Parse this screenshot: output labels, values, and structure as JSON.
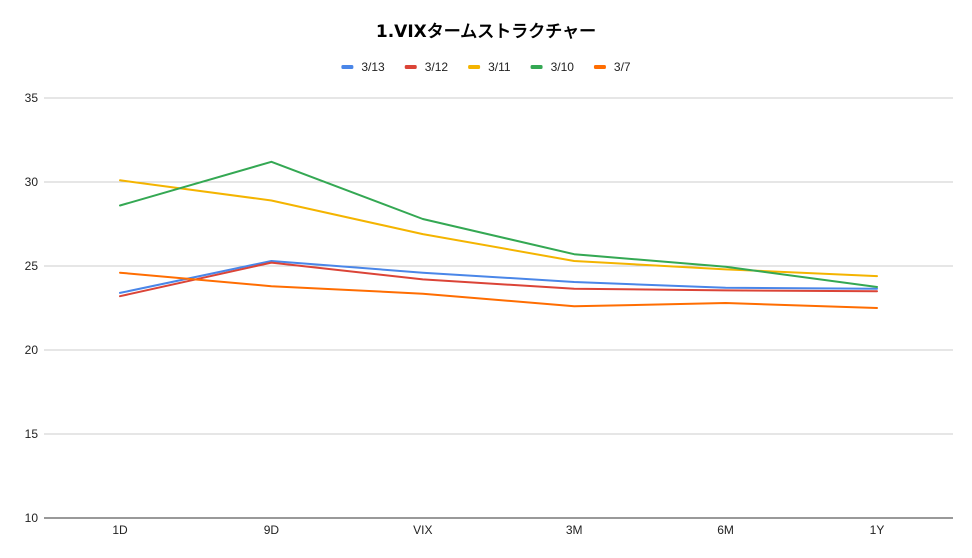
{
  "chart_data": {
    "type": "line",
    "title": "1.VIXタームストラクチャー",
    "xlabel": "",
    "ylabel": "",
    "categories": [
      "1D",
      "9D",
      "VIX",
      "3M",
      "6M",
      "1Y"
    ],
    "ylim": [
      10,
      35
    ],
    "yticks": [
      10,
      15,
      20,
      25,
      30,
      35
    ],
    "grid": true,
    "legend_position": "top",
    "series": [
      {
        "name": "3/13",
        "color": "#4a86e8",
        "values": [
          23.4,
          25.3,
          24.6,
          24.05,
          23.7,
          23.65
        ]
      },
      {
        "name": "3/12",
        "color": "#db4437",
        "values": [
          23.2,
          25.2,
          24.2,
          23.65,
          23.55,
          23.5
        ]
      },
      {
        "name": "3/11",
        "color": "#f4b400",
        "values": [
          30.1,
          28.9,
          26.9,
          25.3,
          24.8,
          24.4
        ]
      },
      {
        "name": "3/10",
        "color": "#34a853",
        "values": [
          28.6,
          31.2,
          27.8,
          25.7,
          24.95,
          23.75
        ]
      },
      {
        "name": "3/7",
        "color": "#ff6d01",
        "values": [
          24.6,
          23.8,
          23.35,
          22.6,
          22.8,
          22.5
        ]
      }
    ]
  }
}
